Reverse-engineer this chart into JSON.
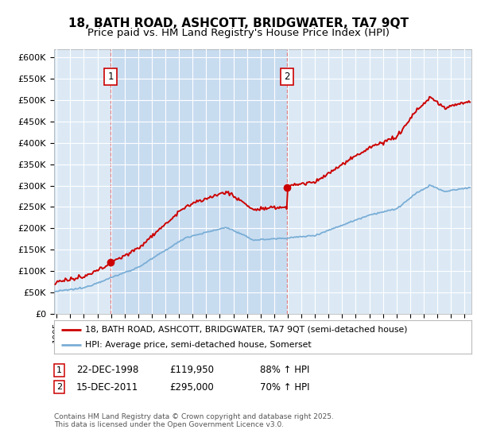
{
  "title": "18, BATH ROAD, ASHCOTT, BRIDGWATER, TA7 9QT",
  "subtitle": "Price paid vs. HM Land Registry's House Price Index (HPI)",
  "ylabel_ticks": [
    "£0",
    "£50K",
    "£100K",
    "£150K",
    "£200K",
    "£250K",
    "£300K",
    "£350K",
    "£400K",
    "£450K",
    "£500K",
    "£550K",
    "£600K"
  ],
  "ytick_vals": [
    0,
    50000,
    100000,
    150000,
    200000,
    250000,
    300000,
    350000,
    400000,
    450000,
    500000,
    550000,
    600000
  ],
  "ylim": [
    0,
    620000
  ],
  "xlim_start": 1994.8,
  "xlim_end": 2025.5,
  "sale1_date": 1998.97,
  "sale1_price": 119950,
  "sale1_label": "1",
  "sale2_date": 2011.96,
  "sale2_price": 295000,
  "sale2_label": "2",
  "background_color": "#dce9f5",
  "shade_color": "#c8dcf0",
  "grid_color": "#ffffff",
  "red_line_color": "#cc0000",
  "blue_line_color": "#7aaed6",
  "legend1": "18, BATH ROAD, ASHCOTT, BRIDGWATER, TA7 9QT (semi-detached house)",
  "legend2": "HPI: Average price, semi-detached house, Somerset",
  "footnote": "Contains HM Land Registry data © Crown copyright and database right 2025.\nThis data is licensed under the Open Government Licence v3.0.",
  "title_fontsize": 11,
  "subtitle_fontsize": 9.5
}
